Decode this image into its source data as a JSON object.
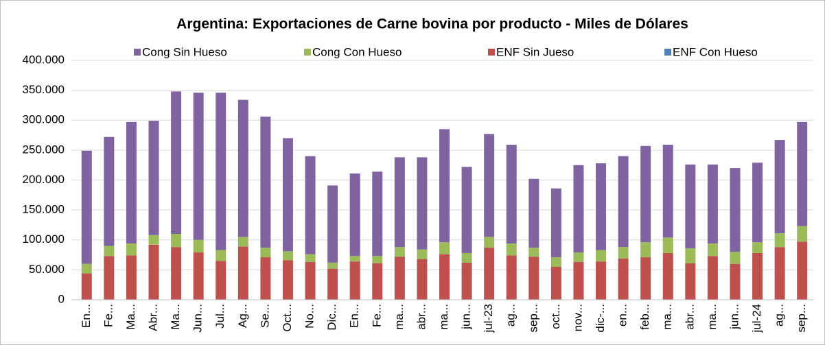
{
  "chart_data": {
    "type": "stacked_bar",
    "title": "Argentina: Exportaciones de Carne bovina por producto - Miles de Dólares",
    "categories": [
      "En...",
      "Fe...",
      "Ma...",
      "Abr...",
      "Ma...",
      "Jun...",
      "Jul...",
      "Ag...",
      "Se...",
      "Oct...",
      "No...",
      "Dic...",
      "En...",
      "Fe...",
      "ma...",
      "abr...",
      "ma...",
      "jun...",
      "jul-23",
      "ag...",
      "sep...",
      "oct...",
      "nov...",
      "dic-...",
      "en...",
      "feb...",
      "ma...",
      "abr...",
      "ma...",
      "jun...",
      "jul-24",
      "ag...",
      "sep..."
    ],
    "series": [
      {
        "name": "Cong Sin Hueso",
        "color": "#8064a2",
        "values": [
          189000,
          182000,
          203000,
          191000,
          238000,
          246000,
          263000,
          229000,
          219000,
          189000,
          164000,
          129000,
          138000,
          141000,
          150000,
          154000,
          189000,
          144000,
          172000,
          165000,
          115000,
          115000,
          146000,
          145000,
          152000,
          161000,
          155000,
          140000,
          132000,
          140000,
          133000,
          156000,
          174000
        ]
      },
      {
        "name": "Cong Con Hueso",
        "color": "#9bbb59",
        "values": [
          16000,
          17000,
          20000,
          16000,
          22000,
          21000,
          18000,
          16000,
          16000,
          15000,
          13000,
          10000,
          9000,
          12000,
          16000,
          16000,
          20000,
          16000,
          18000,
          20000,
          15000,
          16000,
          16000,
          19000,
          19000,
          25000,
          26000,
          25000,
          21000,
          20000,
          18000,
          23000,
          26000
        ]
      },
      {
        "name": "ENF Sin Jueso",
        "color": "#c0504d",
        "values": [
          44000,
          73000,
          74000,
          92000,
          88000,
          79000,
          65000,
          89000,
          71000,
          66000,
          63000,
          52000,
          64000,
          61000,
          72000,
          68000,
          76000,
          62000,
          87000,
          74000,
          72000,
          55000,
          63000,
          64000,
          69000,
          71000,
          78000,
          61000,
          73000,
          60000,
          78000,
          88000,
          97000
        ]
      },
      {
        "name": "ENF Con Hueso",
        "color": "#4f81bd",
        "values": [
          0,
          0,
          0,
          0,
          0,
          0,
          0,
          0,
          0,
          0,
          0,
          0,
          0,
          0,
          0,
          0,
          0,
          0,
          0,
          0,
          0,
          0,
          0,
          0,
          0,
          0,
          0,
          0,
          0,
          0,
          0,
          0,
          0
        ]
      }
    ],
    "ylim": [
      0,
      400000
    ],
    "yticks": [
      0,
      {
        "value": 50000,
        "label": "50.000"
      },
      {
        "value": 100000,
        "label": "100.000"
      },
      {
        "value": 150000,
        "label": "150.000"
      },
      {
        "value": 200000,
        "label": "200.000"
      },
      {
        "value": 250000,
        "label": "250.000"
      },
      {
        "value": 300000,
        "label": "300.000"
      },
      {
        "value": 350000,
        "label": "350.000"
      },
      {
        "value": 400000,
        "label": "400.000"
      }
    ],
    "grid": true,
    "legend": "top"
  }
}
